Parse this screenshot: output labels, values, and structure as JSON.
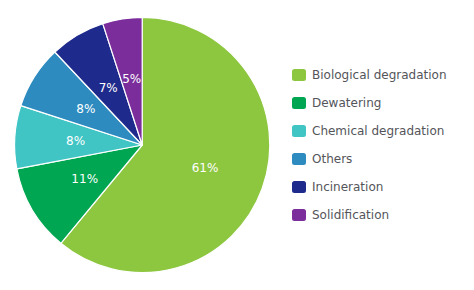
{
  "chart_data": {
    "type": "pie",
    "categories": [
      "Biological degradation",
      "Dewatering",
      "Chemical degradation",
      "Others",
      "Incineration",
      "Solidification"
    ],
    "values": [
      61,
      11,
      8,
      8,
      7,
      5
    ],
    "value_labels": [
      "61%",
      "11%",
      "8%",
      "8%",
      "7%",
      "5%"
    ],
    "colors": [
      "#8dc63f",
      "#00a651",
      "#40c4c4",
      "#2e8bc0",
      "#1f2b8c",
      "#7b2d9b"
    ],
    "data_labels": true,
    "legend": "right"
  }
}
